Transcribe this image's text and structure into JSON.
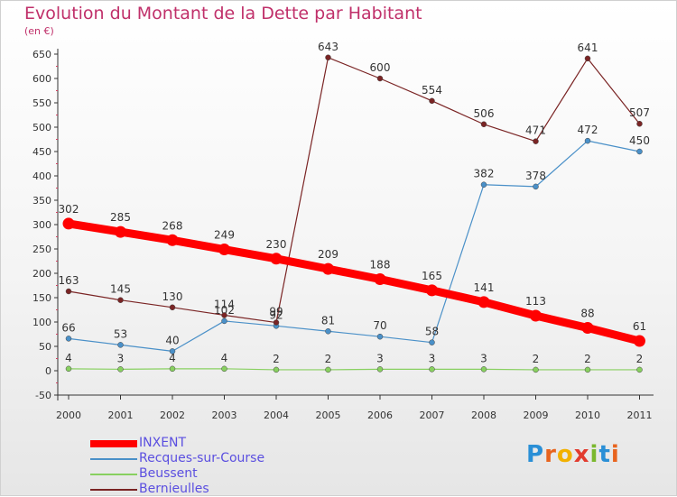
{
  "title": "Evolution du Montant de la Dette par Habitant",
  "unit": "(en €)",
  "logo": {
    "letters": [
      "P",
      "r",
      "o",
      "x",
      "i",
      "t",
      "i"
    ],
    "colors": [
      "#2a8fd6",
      "#e8641e",
      "#f2b100",
      "#e23b2e",
      "#7ab82e",
      "#2a8fd6",
      "#e8641e"
    ]
  },
  "chart_data": {
    "type": "line",
    "categories": [
      "2000",
      "2001",
      "2002",
      "2003",
      "2004",
      "2005",
      "2006",
      "2007",
      "2008",
      "2009",
      "2010",
      "2011"
    ],
    "ylim": [
      -50,
      650
    ],
    "yticks": [
      -50,
      0,
      50,
      100,
      150,
      200,
      250,
      300,
      350,
      400,
      450,
      500,
      550,
      600,
      650
    ],
    "grid": false,
    "legend_position": "bottom-left",
    "series": [
      {
        "name": "INXENT",
        "color": "#ff0000",
        "width": 9,
        "marker": 6.5,
        "values": [
          302,
          285,
          268,
          249,
          230,
          209,
          188,
          165,
          141,
          113,
          88,
          61
        ]
      },
      {
        "name": "Recques-sur-Course",
        "color": "#4a90c8",
        "width": 1.2,
        "marker": 3,
        "values": [
          66,
          53,
          40,
          102,
          92,
          81,
          70,
          58,
          382,
          378,
          472,
          450
        ]
      },
      {
        "name": "Beussent",
        "color": "#88d060",
        "width": 1.2,
        "marker": 3,
        "values": [
          4,
          3,
          4,
          4,
          2,
          2,
          3,
          3,
          3,
          2,
          2,
          2
        ]
      },
      {
        "name": "Bernieulles",
        "color": "#7a2424",
        "width": 1.2,
        "marker": 3,
        "values": [
          163,
          145,
          130,
          114,
          99,
          643,
          600,
          554,
          506,
          471,
          641,
          507
        ]
      }
    ]
  }
}
